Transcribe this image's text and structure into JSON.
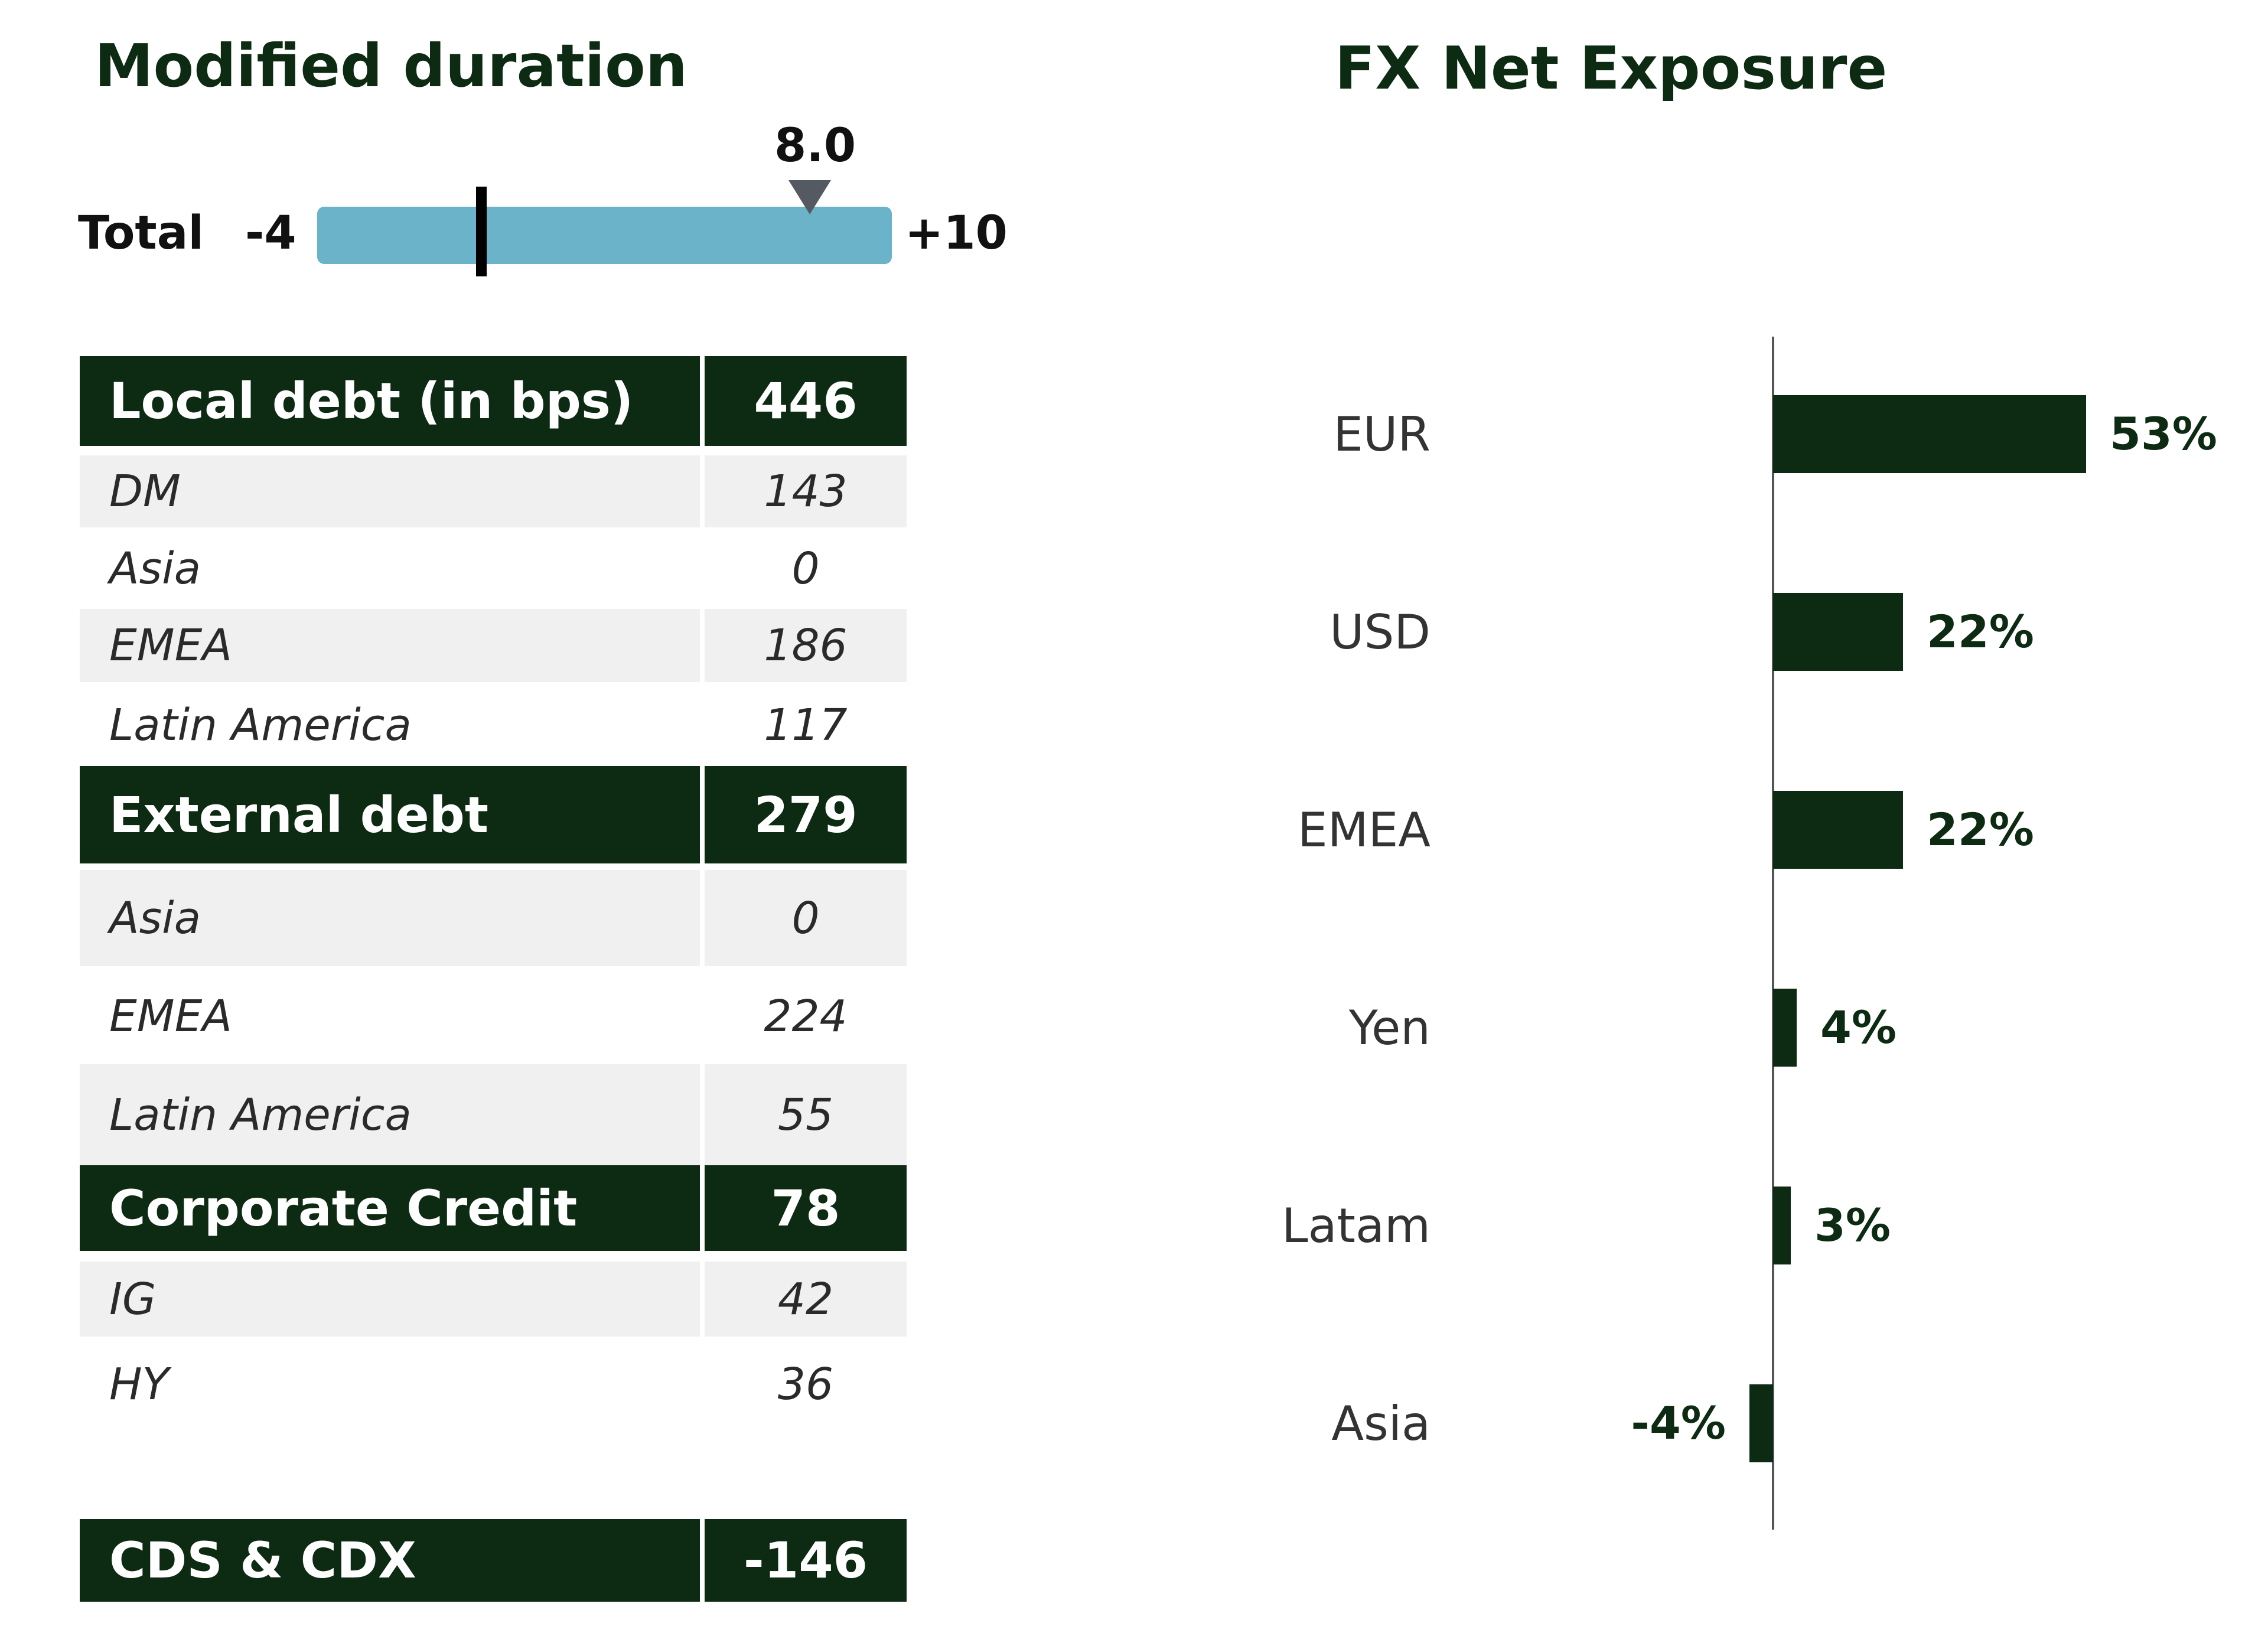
{
  "modified_duration": {
    "title": "Modified duration",
    "gauge": {
      "label": "Total",
      "min": -4,
      "max": 10,
      "min_label": "-4",
      "max_label": "+10",
      "value": 8.0,
      "value_label": "8.0",
      "zero": 0
    },
    "table": [
      {
        "kind": "head",
        "label": "Local debt (in bps)",
        "value": "446"
      },
      {
        "kind": "sub",
        "label": "DM",
        "value": "143"
      },
      {
        "kind": "sub",
        "label": "Asia",
        "value": "0"
      },
      {
        "kind": "sub",
        "label": "EMEA",
        "value": "186"
      },
      {
        "kind": "sub",
        "label": "Latin America",
        "value": "117"
      },
      {
        "kind": "head",
        "label": "External debt",
        "value": "279"
      },
      {
        "kind": "sub",
        "label": "Asia",
        "value": "0"
      },
      {
        "kind": "sub",
        "label": "EMEA",
        "value": "224"
      },
      {
        "kind": "sub",
        "label": "Latin America",
        "value": "55"
      },
      {
        "kind": "head",
        "label": "Corporate Credit",
        "value": "78"
      },
      {
        "kind": "sub",
        "label": "IG",
        "value": "42"
      },
      {
        "kind": "sub",
        "label": "HY",
        "value": "36"
      },
      {
        "kind": "head",
        "label": "CDS & CDX",
        "value": "-146"
      }
    ]
  },
  "fx": {
    "title": "FX Net Exposure"
  },
  "colors": {
    "dark_green": "#0d2b12",
    "gauge_blue": "#6ab3c9",
    "marker_gray": "#555a62",
    "row_shade": "#f0f0f0"
  },
  "chart_data": {
    "type": "bar",
    "orientation": "horizontal",
    "title": "FX Net Exposure",
    "categories": [
      "EUR",
      "USD",
      "EMEA",
      "Yen",
      "Latam",
      "Asia"
    ],
    "values": [
      53,
      22,
      22,
      4,
      3,
      -4
    ],
    "value_labels": [
      "53%",
      "22%",
      "22%",
      "4%",
      "3%",
      "-4%"
    ],
    "unit": "%",
    "xlim": [
      -4,
      53
    ]
  }
}
